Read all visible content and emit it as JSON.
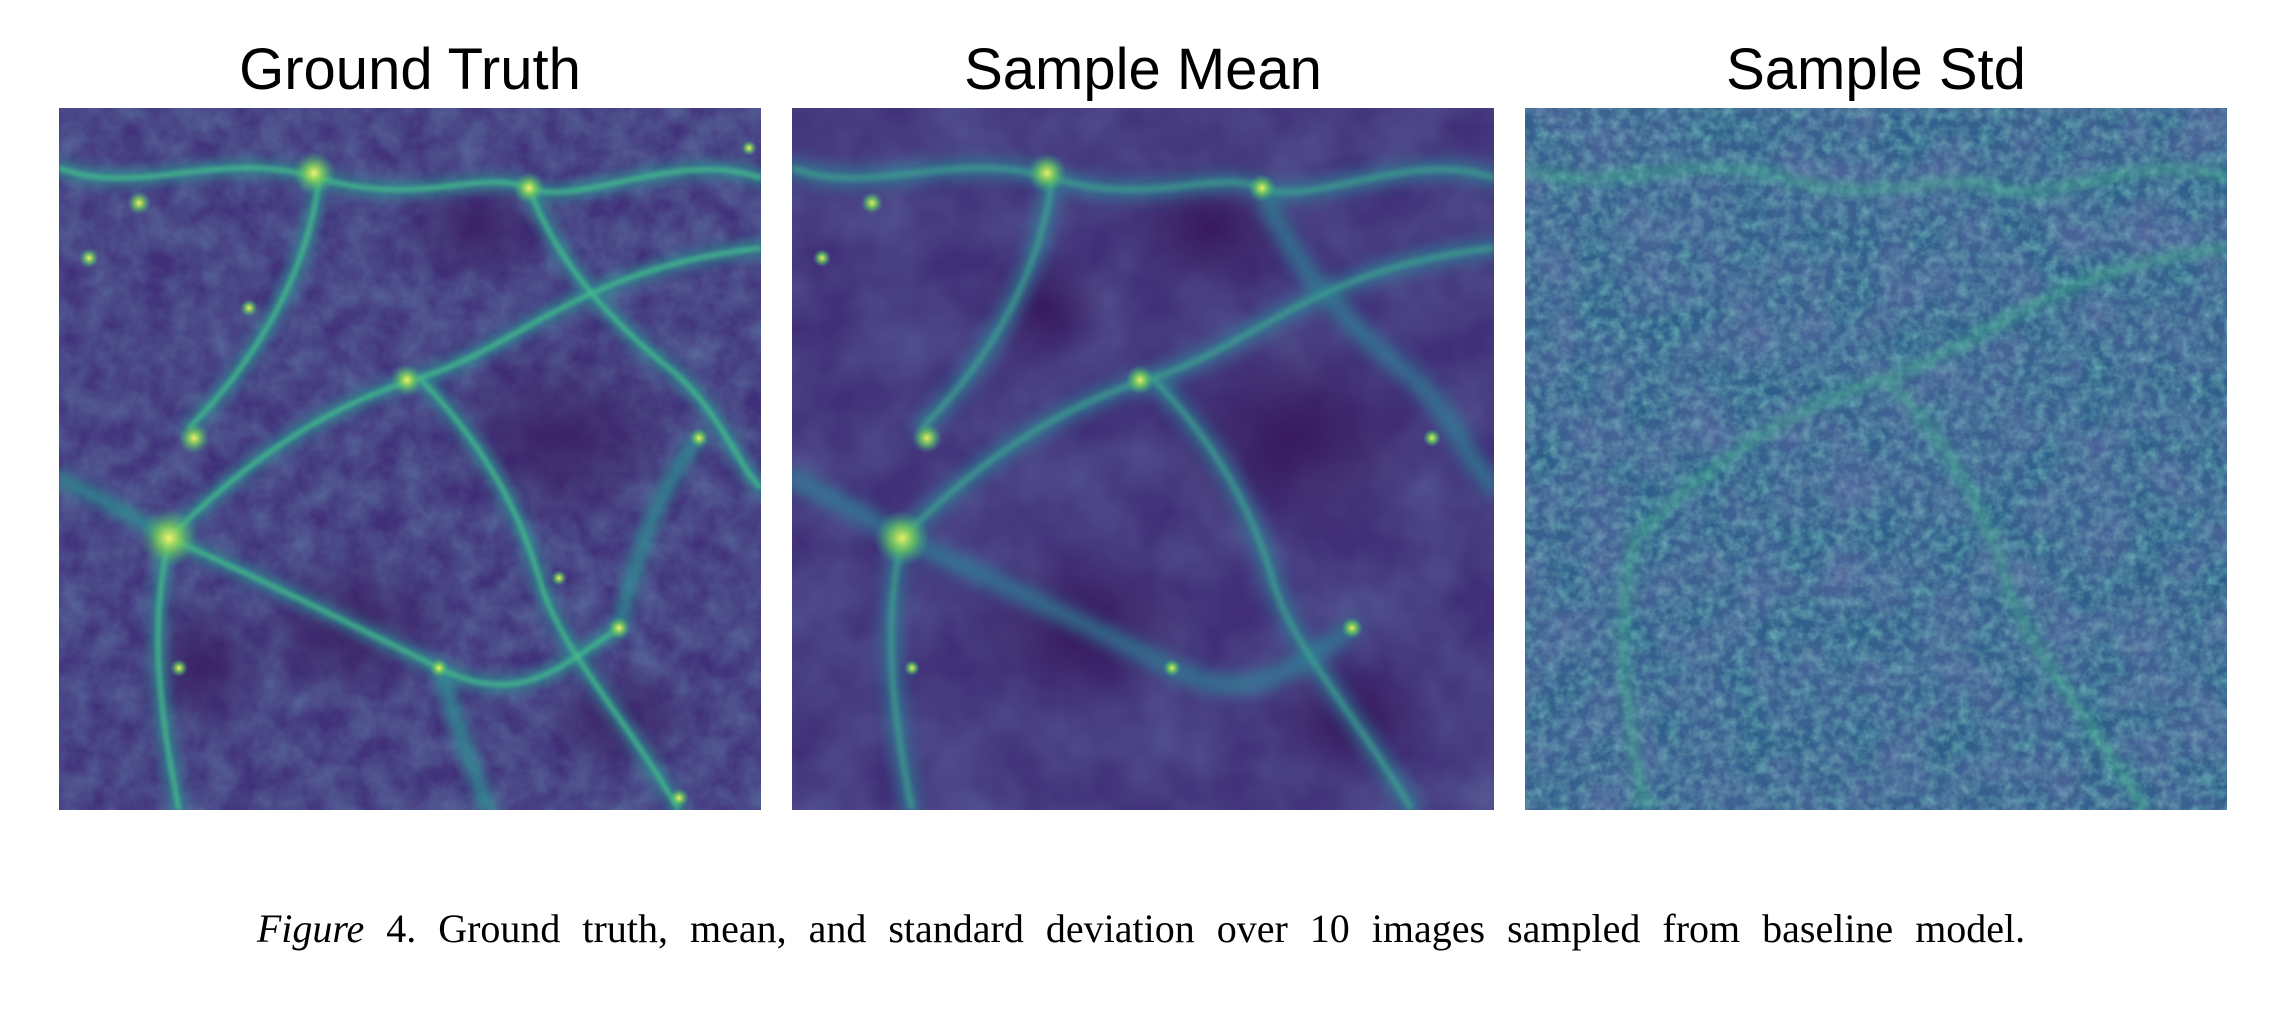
{
  "figure": {
    "panels": [
      {
        "title": "Ground Truth"
      },
      {
        "title": "Sample Mean"
      },
      {
        "title": "Sample Std"
      }
    ],
    "caption": {
      "label": "Figure",
      "number": "4.",
      "text": "Ground truth, mean, and standard deviation over 10 images sampled from baseline model."
    }
  },
  "colors": {
    "void": "#3e2a6c",
    "mid": "#2f6f8e",
    "filament": "#2fa08a",
    "bright": "#b7e34a",
    "peak": "#f3f36a"
  }
}
